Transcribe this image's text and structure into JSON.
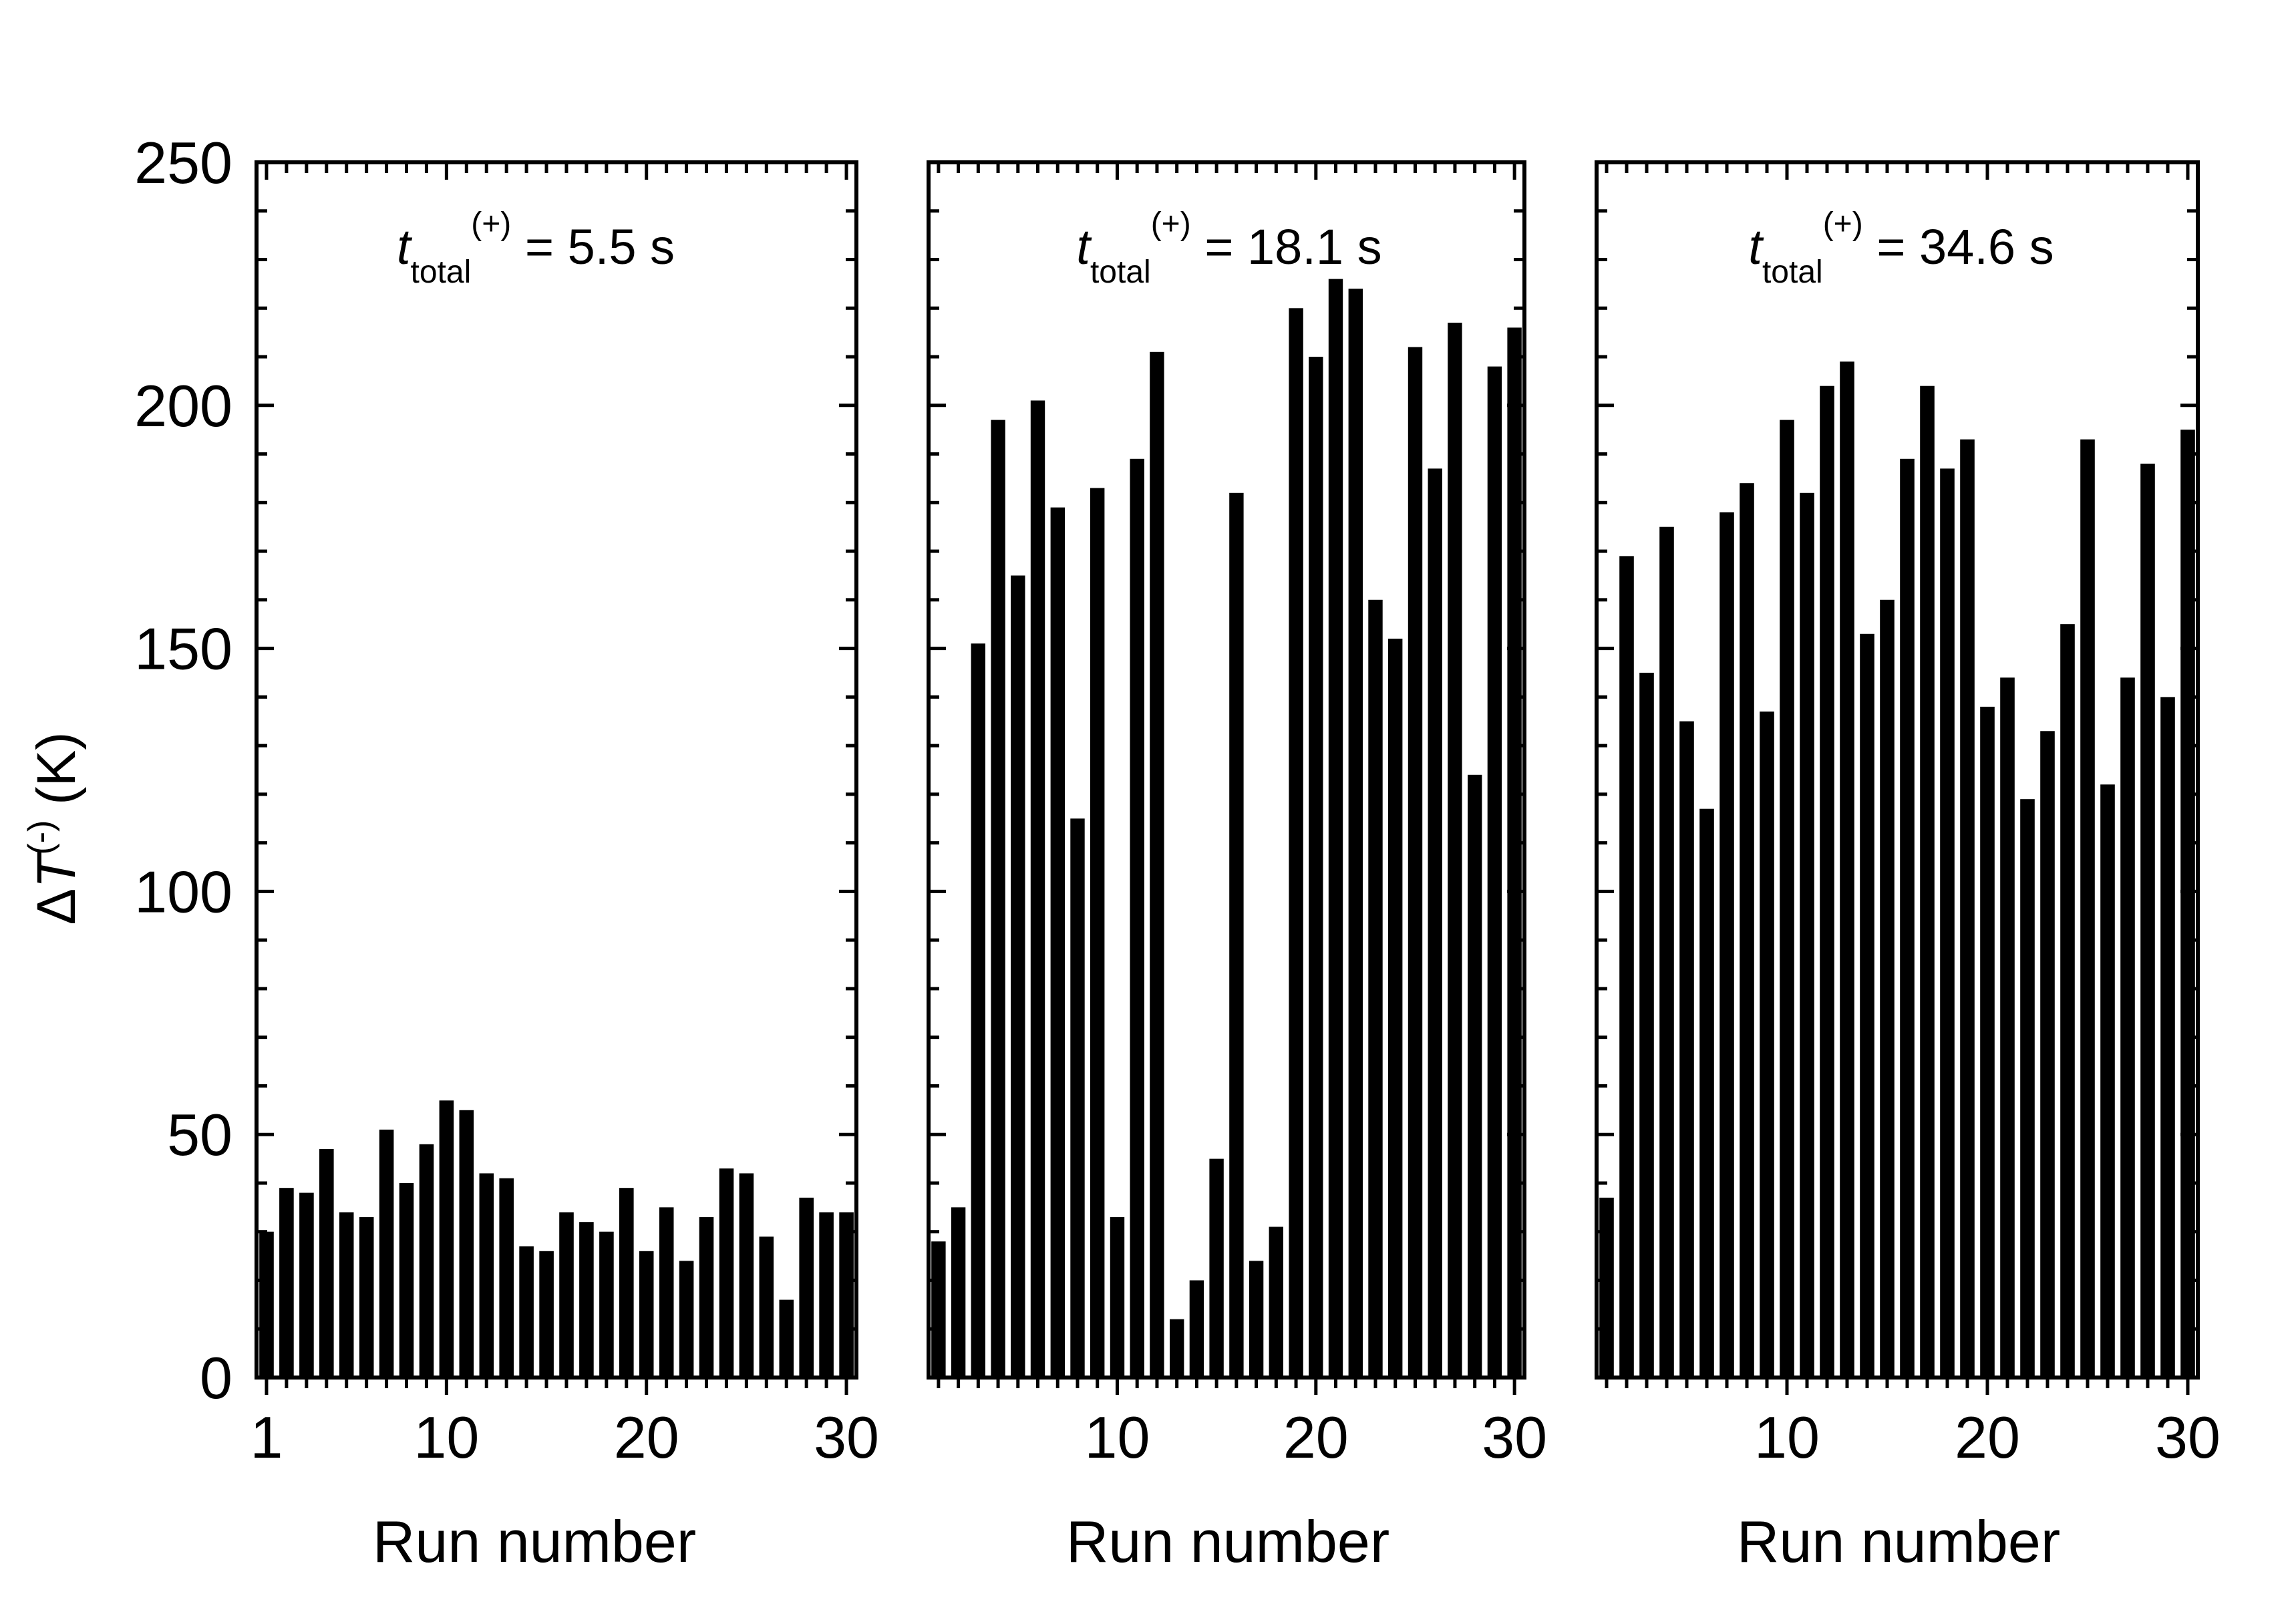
{
  "ylabel": {
    "delta": "Δ",
    "T": "T",
    "sup": "(-)",
    "unit": " (K)"
  },
  "colors": {
    "bar": "#000000",
    "axis": "#000000",
    "background": "#ffffff"
  },
  "chart_data": [
    {
      "type": "bar",
      "annotation": {
        "t": "t",
        "sub": "total",
        "sup": "(+)",
        "value": " = 5.5 s"
      },
      "xlabel": "Run number",
      "ylabel": "ΔT(-) (K)",
      "xlim": [
        0.5,
        30.5
      ],
      "ylim": [
        0,
        250
      ],
      "xticks": [
        1,
        10,
        20,
        30
      ],
      "yticks": [
        0,
        50,
        100,
        150,
        200,
        250
      ],
      "x": [
        1,
        2,
        3,
        4,
        5,
        6,
        7,
        8,
        9,
        10,
        11,
        12,
        13,
        14,
        15,
        16,
        17,
        18,
        19,
        20,
        21,
        22,
        23,
        24,
        25,
        26,
        27,
        28,
        29,
        30
      ],
      "values": [
        30,
        39,
        38,
        47,
        34,
        33,
        51,
        40,
        48,
        57,
        55,
        42,
        41,
        27,
        26,
        34,
        32,
        30,
        39,
        26,
        35,
        24,
        33,
        43,
        42,
        29,
        16,
        37,
        34,
        34
      ]
    },
    {
      "type": "bar",
      "annotation": {
        "t": "t",
        "sub": "total",
        "sup": "(+)",
        "value": " = 18.1 s"
      },
      "xlabel": "Run number",
      "ylabel": "ΔT(-) (K)",
      "xlim": [
        0.5,
        30.5
      ],
      "ylim": [
        0,
        250
      ],
      "xticks": [
        10,
        20,
        30
      ],
      "yticks": [
        0,
        50,
        100,
        150,
        200,
        250
      ],
      "x": [
        1,
        2,
        3,
        4,
        5,
        6,
        7,
        8,
        9,
        10,
        11,
        12,
        13,
        14,
        15,
        16,
        17,
        18,
        19,
        20,
        21,
        22,
        23,
        24,
        25,
        26,
        27,
        28,
        29,
        30
      ],
      "values": [
        28,
        35,
        151,
        197,
        165,
        201,
        179,
        115,
        183,
        33,
        189,
        211,
        12,
        20,
        45,
        182,
        24,
        31,
        220,
        210,
        226,
        224,
        160,
        152,
        212,
        187,
        217,
        124,
        208,
        216
      ]
    },
    {
      "type": "bar",
      "annotation": {
        "t": "t",
        "sub": "total",
        "sup": "(+)",
        "value": " = 34.6 s"
      },
      "xlabel": "Run number",
      "ylabel": "ΔT(-) (K)",
      "xlim": [
        0.5,
        30.5
      ],
      "ylim": [
        0,
        250
      ],
      "xticks": [
        10,
        20,
        30
      ],
      "yticks": [
        0,
        50,
        100,
        150,
        200,
        250
      ],
      "x": [
        1,
        2,
        3,
        4,
        5,
        6,
        7,
        8,
        9,
        10,
        11,
        12,
        13,
        14,
        15,
        16,
        17,
        18,
        19,
        20,
        21,
        22,
        23,
        24,
        25,
        26,
        27,
        28,
        29,
        30
      ],
      "values": [
        37,
        169,
        145,
        175,
        135,
        117,
        178,
        184,
        137,
        197,
        182,
        204,
        209,
        153,
        160,
        189,
        204,
        187,
        193,
        138,
        144,
        119,
        133,
        155,
        193,
        122,
        144,
        188,
        140,
        195
      ]
    }
  ]
}
